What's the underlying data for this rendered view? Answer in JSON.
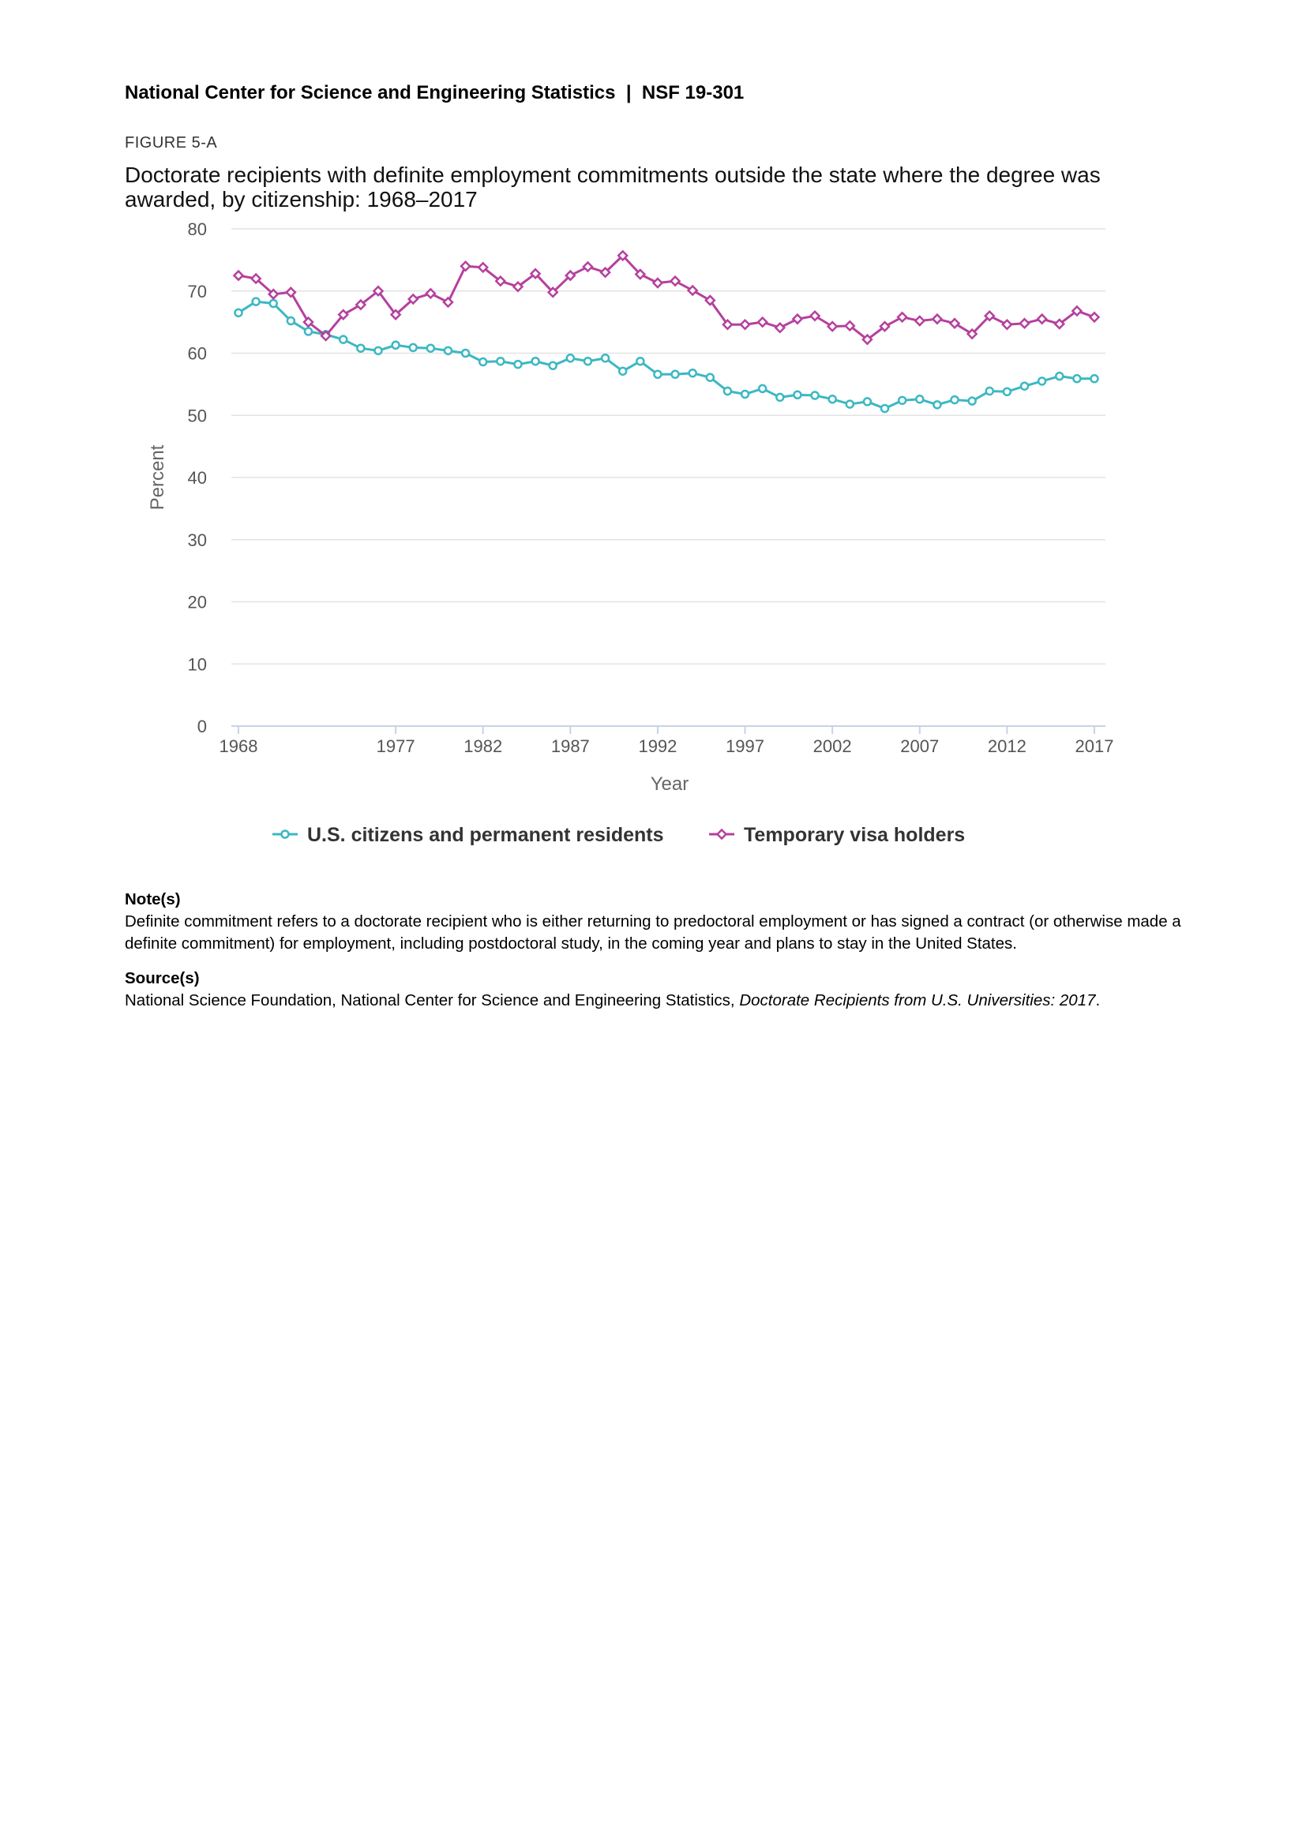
{
  "header": {
    "text": "National Center for Science and Engineering Statistics  |  NSF 19-301"
  },
  "figure": {
    "label": "FIGURE 5-A",
    "title": "Doctorate recipients with definite employment commitments outside the state where the degree was awarded, by citizenship: 1968–2017"
  },
  "chart_data": {
    "type": "line",
    "xlabel": "Year",
    "ylabel": "Percent",
    "ylim": [
      0,
      80
    ],
    "yticks": [
      0,
      10,
      20,
      30,
      40,
      50,
      60,
      70,
      80
    ],
    "xticks": [
      1968,
      1977,
      1982,
      1987,
      1992,
      1997,
      2002,
      2007,
      2012,
      2017
    ],
    "xlim": [
      1968,
      2017
    ],
    "grid": true,
    "legend_position": "bottom",
    "x": [
      1968,
      1969,
      1970,
      1971,
      1972,
      1973,
      1974,
      1975,
      1976,
      1977,
      1978,
      1979,
      1980,
      1981,
      1982,
      1983,
      1984,
      1985,
      1986,
      1987,
      1988,
      1989,
      1990,
      1991,
      1992,
      1993,
      1994,
      1995,
      1996,
      1997,
      1998,
      1999,
      2000,
      2001,
      2002,
      2003,
      2004,
      2005,
      2006,
      2007,
      2008,
      2009,
      2010,
      2011,
      2012,
      2013,
      2014,
      2015,
      2016,
      2017
    ],
    "series": [
      {
        "name": "U.S. citizens and permanent residents",
        "color": "#3bb8c3",
        "marker": "circle",
        "values": [
          66.5,
          68.3,
          68.0,
          65.2,
          63.5,
          63.0,
          62.2,
          60.8,
          60.4,
          61.3,
          60.9,
          60.8,
          60.4,
          60.0,
          58.6,
          58.7,
          58.2,
          58.7,
          58.0,
          59.2,
          58.7,
          59.2,
          57.1,
          58.7,
          56.6,
          56.6,
          56.8,
          56.1,
          53.9,
          53.4,
          54.3,
          52.9,
          53.3,
          53.2,
          52.6,
          51.8,
          52.2,
          51.1,
          52.4,
          52.6,
          51.7,
          52.5,
          52.3,
          53.9,
          53.8,
          54.7,
          55.5,
          56.3,
          55.9,
          55.9
        ]
      },
      {
        "name": "Temporary visa holders",
        "color": "#b5409e",
        "marker": "diamond",
        "values": [
          72.5,
          72.0,
          69.5,
          69.8,
          65.0,
          62.8,
          66.2,
          67.8,
          70.0,
          66.2,
          68.7,
          69.6,
          68.2,
          74.0,
          73.8,
          71.6,
          70.7,
          72.8,
          69.8,
          72.5,
          73.9,
          73.0,
          75.7,
          72.7,
          71.3,
          71.6,
          70.1,
          68.5,
          64.6,
          64.6,
          65.0,
          64.1,
          65.5,
          66.0,
          64.3,
          64.4,
          62.2,
          64.3,
          65.8,
          65.2,
          65.5,
          64.8,
          63.1,
          66.0,
          64.6,
          64.8,
          65.5,
          64.7,
          66.8,
          65.8
        ]
      }
    ]
  },
  "notes": {
    "heading": "Note(s)",
    "text": "Definite commitment refers to a doctorate recipient who is either returning to predoctoral employment or has signed a contract (or otherwise made a definite commitment) for employment, including postdoctoral study, in the coming year and plans to stay in the United States."
  },
  "source": {
    "heading": "Source(s)",
    "text": "National Science Foundation, National Center for Science and Engineering Statistics, ",
    "title": "Doctorate Recipients from U.S. Universities: 2017",
    "end": "."
  }
}
